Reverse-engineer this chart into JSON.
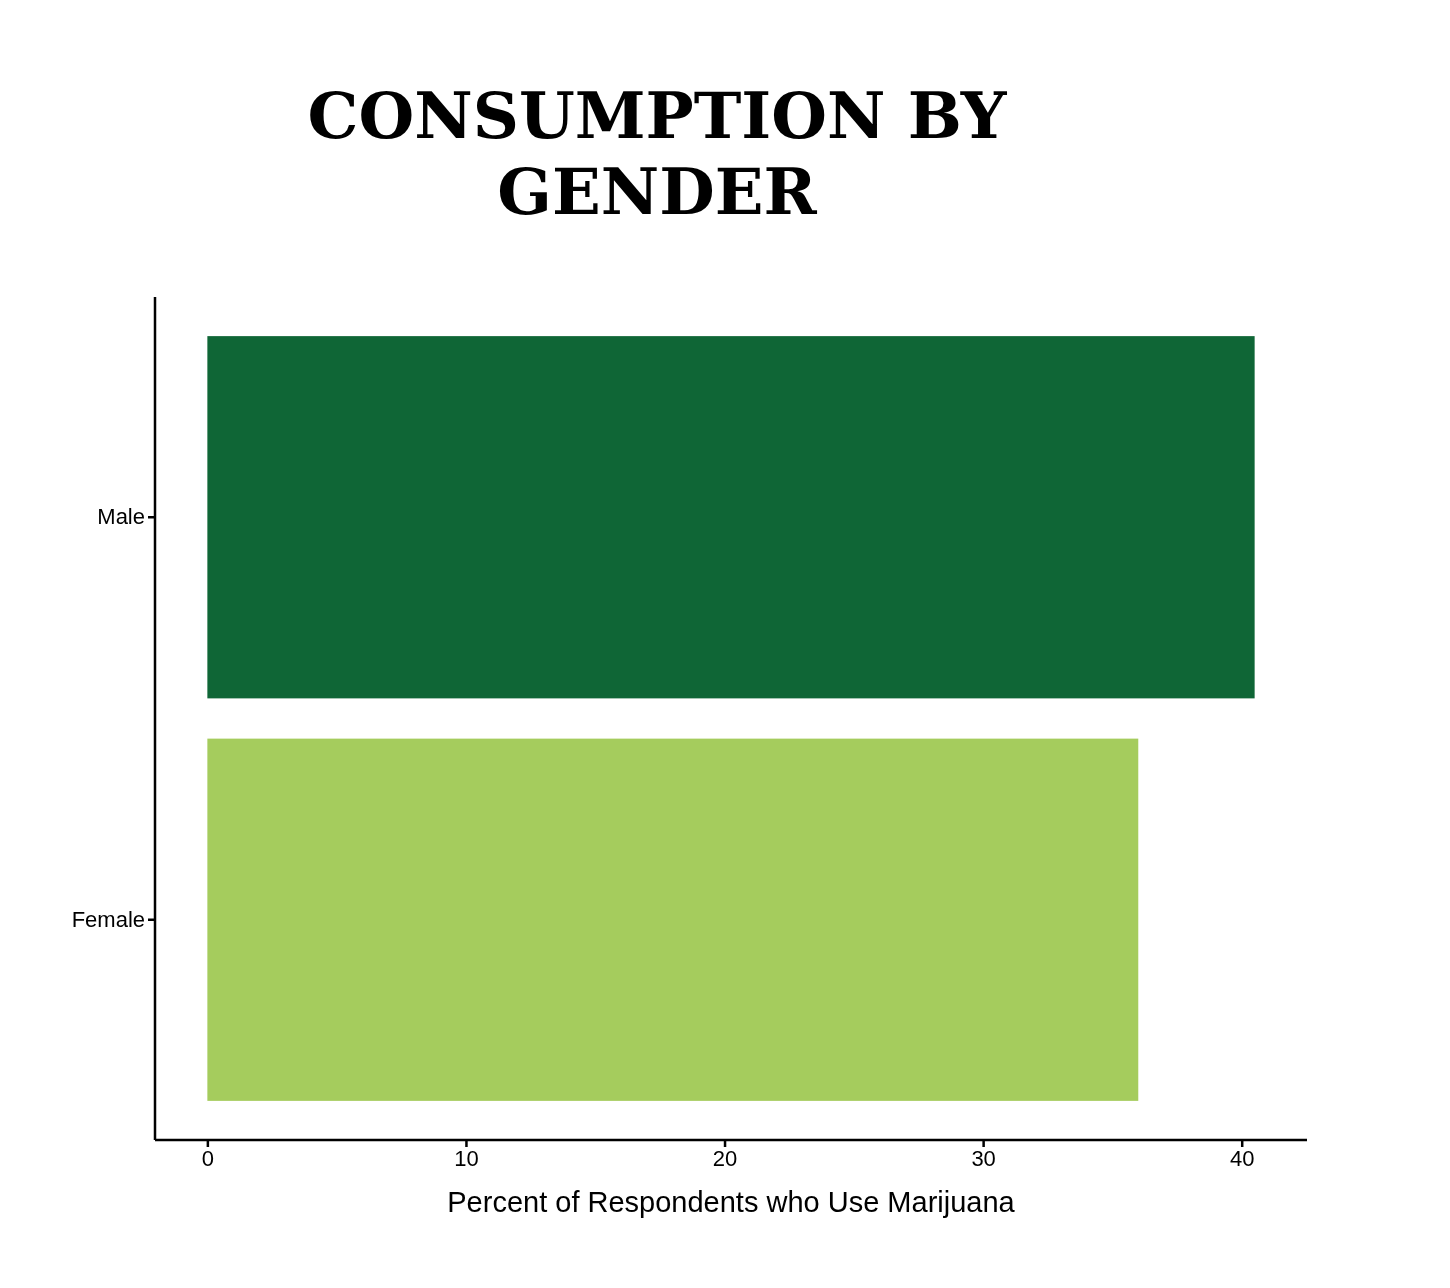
{
  "chart_data": {
    "type": "bar",
    "orientation": "horizontal",
    "title": "CONSUMPTION BY\nGENDER",
    "xlabel": "Percent of Respondents who Use Marijuana",
    "categories": [
      "Male",
      "Female"
    ],
    "values": [
      40.5,
      36.0
    ],
    "colors": [
      "#0f6636",
      "#a5cc5d"
    ],
    "xlim": [
      -2.025,
      42.525
    ],
    "xticks": [
      0,
      10,
      20,
      30,
      40
    ],
    "grid": false
  }
}
